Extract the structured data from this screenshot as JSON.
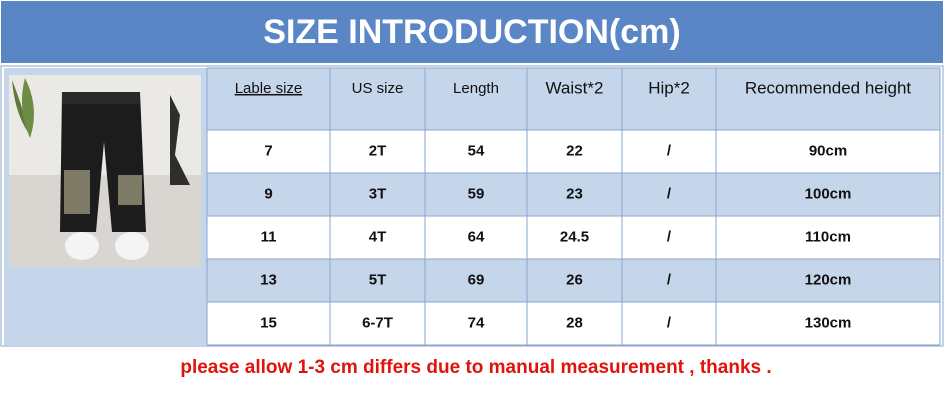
{
  "header": {
    "title": "SIZE INTRODUCTION(cm)"
  },
  "table": {
    "columns": [
      "Lable size",
      "US size",
      "Length",
      "Waist*2",
      "Hip*2",
      "Recommended height"
    ],
    "rows": [
      [
        "7",
        "2T",
        "54",
        "22",
        "/",
        "90cm"
      ],
      [
        "9",
        "3T",
        "59",
        "23",
        "/",
        "100cm"
      ],
      [
        "11",
        "4T",
        "64",
        "24.5",
        "/",
        "110cm"
      ],
      [
        "13",
        "5T",
        "69",
        "26",
        "/",
        "120cm"
      ],
      [
        "15",
        "6-7T",
        "74",
        "28",
        "/",
        "130cm"
      ]
    ]
  },
  "footer": {
    "note": "please allow 1-3 cm differs due to manual measurement , thanks ."
  }
}
